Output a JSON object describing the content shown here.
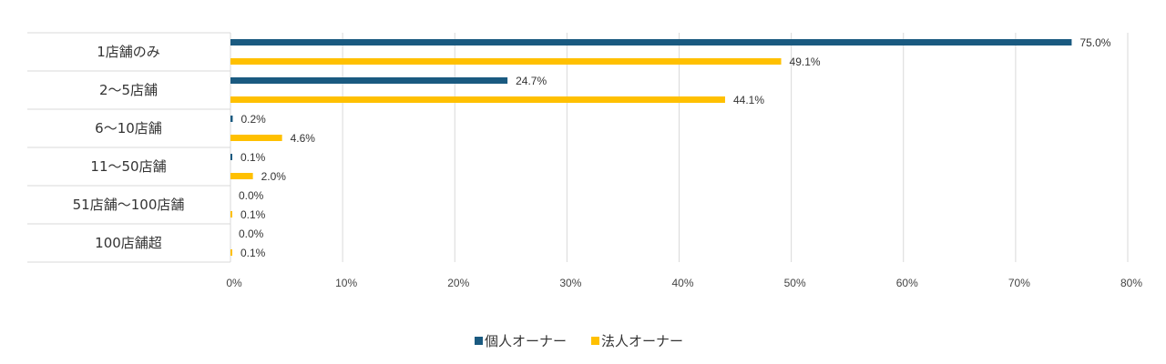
{
  "chart_data": {
    "type": "bar",
    "orientation": "horizontal",
    "categories": [
      "1店舗のみ",
      "2〜5店舗",
      "6〜10店舗",
      "11〜50店舗",
      "51店舗〜100店舗",
      "100店舗超"
    ],
    "series": [
      {
        "name": "個人オーナー",
        "color": "#1a5a80",
        "values": [
          75.0,
          24.7,
          0.2,
          0.1,
          0.0,
          0.0
        ],
        "labels": [
          "75.0%",
          "24.7%",
          "0.2%",
          "0.1%",
          "0.0%",
          "0.0%"
        ]
      },
      {
        "name": "法人オーナー",
        "color": "#ffc000",
        "values": [
          49.1,
          44.1,
          4.6,
          2.0,
          0.1,
          0.1
        ],
        "labels": [
          "49.1%",
          "44.1%",
          "4.6%",
          "2.0%",
          "0.1%",
          "0.1%"
        ]
      }
    ],
    "xlim": [
      0,
      80
    ],
    "xticks": [
      0,
      10,
      20,
      30,
      40,
      50,
      60,
      70,
      80
    ],
    "xtick_labels": [
      "0%",
      "10%",
      "20%",
      "30%",
      "40%",
      "50%",
      "60%",
      "70%",
      "80%"
    ],
    "grid": true,
    "legend": "bottom"
  }
}
